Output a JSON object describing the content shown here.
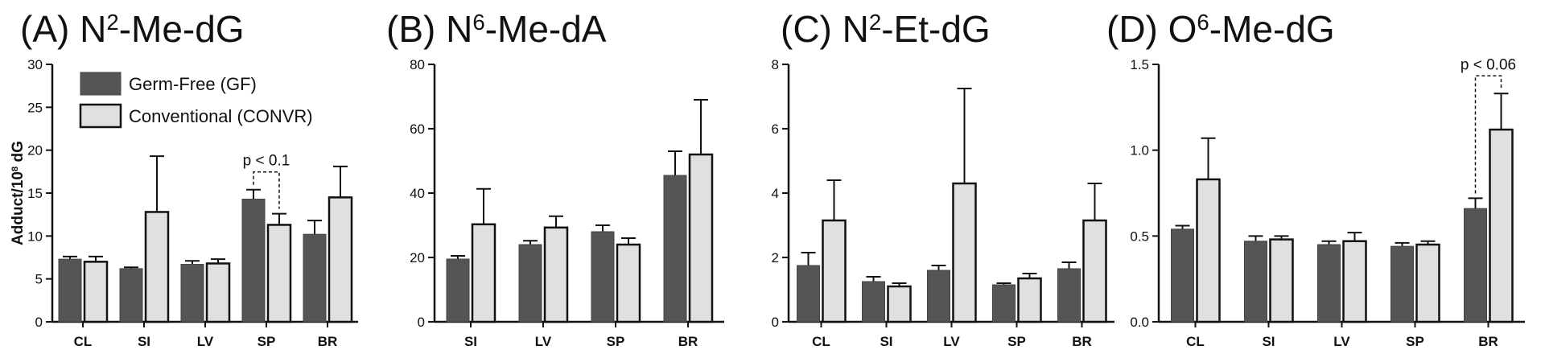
{
  "figure": {
    "ylabel_parts": [
      "Adduct/10",
      "8",
      " dG"
    ],
    "legend": [
      {
        "label": "Germ-Free (GF)",
        "color": "#555555"
      },
      {
        "label": "Conventional (CONVR)",
        "color": "#e0e0e0"
      }
    ]
  },
  "chart_data": [
    {
      "type": "bar",
      "title_parts": [
        "(A) N",
        "2",
        "-Me-dG"
      ],
      "categories": [
        "CL",
        "SI",
        "LV",
        "SP",
        "BR"
      ],
      "ylim": [
        0,
        30
      ],
      "yticks": [
        0,
        5,
        10,
        15,
        20,
        25,
        30
      ],
      "ytick_labels": [
        "0",
        "5",
        "10",
        "15",
        "20",
        "25",
        "30"
      ],
      "series": [
        {
          "name": "Germ-Free (GF)",
          "color": "#555555",
          "values": [
            7.3,
            6.2,
            6.7,
            14.3,
            10.2
          ],
          "errors": [
            0.3,
            0.15,
            0.4,
            1.1,
            1.6
          ]
        },
        {
          "name": "Conventional (CONVR)",
          "color": "#e0e0e0",
          "values": [
            7.0,
            12.8,
            6.8,
            11.3,
            14.5
          ],
          "errors": [
            0.6,
            6.5,
            0.5,
            1.3,
            3.6
          ]
        }
      ],
      "annotation": {
        "text": "p < 0.1",
        "category_index": 3
      }
    },
    {
      "type": "bar",
      "title_parts": [
        "(B) N",
        "6",
        "-Me-dA"
      ],
      "categories": [
        "SI",
        "LV",
        "SP",
        "BR"
      ],
      "ylim": [
        0,
        80
      ],
      "yticks": [
        0,
        20,
        40,
        60,
        80
      ],
      "ytick_labels": [
        "0",
        "20",
        "40",
        "60",
        "80"
      ],
      "series": [
        {
          "name": "Germ-Free (GF)",
          "color": "#555555",
          "values": [
            19.5,
            24.0,
            28.0,
            45.5
          ],
          "errors": [
            1.0,
            1.2,
            2.0,
            7.5
          ]
        },
        {
          "name": "Conventional (CONVR)",
          "color": "#e0e0e0",
          "values": [
            30.3,
            29.3,
            24.0,
            52.0
          ],
          "errors": [
            11.0,
            3.5,
            2.0,
            17.0
          ]
        }
      ]
    },
    {
      "type": "bar",
      "title_parts": [
        "(C) N",
        "2",
        "-Et-dG"
      ],
      "categories": [
        "CL",
        "SI",
        "LV",
        "SP",
        "BR"
      ],
      "ylim": [
        0,
        8
      ],
      "yticks": [
        0,
        2,
        4,
        6,
        8
      ],
      "ytick_labels": [
        "0",
        "2",
        "4",
        "6",
        "8"
      ],
      "series": [
        {
          "name": "Germ-Free (GF)",
          "color": "#555555",
          "values": [
            1.75,
            1.25,
            1.6,
            1.15,
            1.65
          ],
          "errors": [
            0.4,
            0.15,
            0.15,
            0.05,
            0.2
          ]
        },
        {
          "name": "Conventional (CONVR)",
          "color": "#e0e0e0",
          "values": [
            3.15,
            1.1,
            4.3,
            1.35,
            3.15
          ],
          "errors": [
            1.25,
            0.1,
            2.95,
            0.15,
            1.15
          ]
        }
      ]
    },
    {
      "type": "bar",
      "title_parts": [
        "(D) O",
        "6",
        "-Me-dG"
      ],
      "categories": [
        "CL",
        "SI",
        "LV",
        "SP",
        "BR"
      ],
      "ylim": [
        0,
        1.5
      ],
      "yticks": [
        0,
        0.5,
        1.0,
        1.5
      ],
      "ytick_labels": [
        "0.0",
        "0.5",
        "1.0",
        "1.5"
      ],
      "series": [
        {
          "name": "Germ-Free (GF)",
          "color": "#555555",
          "values": [
            0.54,
            0.47,
            0.45,
            0.44,
            0.66
          ],
          "errors": [
            0.02,
            0.03,
            0.02,
            0.02,
            0.06
          ]
        },
        {
          "name": "Conventional (CONVR)",
          "color": "#e0e0e0",
          "values": [
            0.83,
            0.48,
            0.47,
            0.45,
            1.12
          ],
          "errors": [
            0.24,
            0.02,
            0.05,
            0.02,
            0.21
          ]
        }
      ],
      "annotation": {
        "text": "p < 0.06",
        "category_index": 4
      }
    }
  ]
}
